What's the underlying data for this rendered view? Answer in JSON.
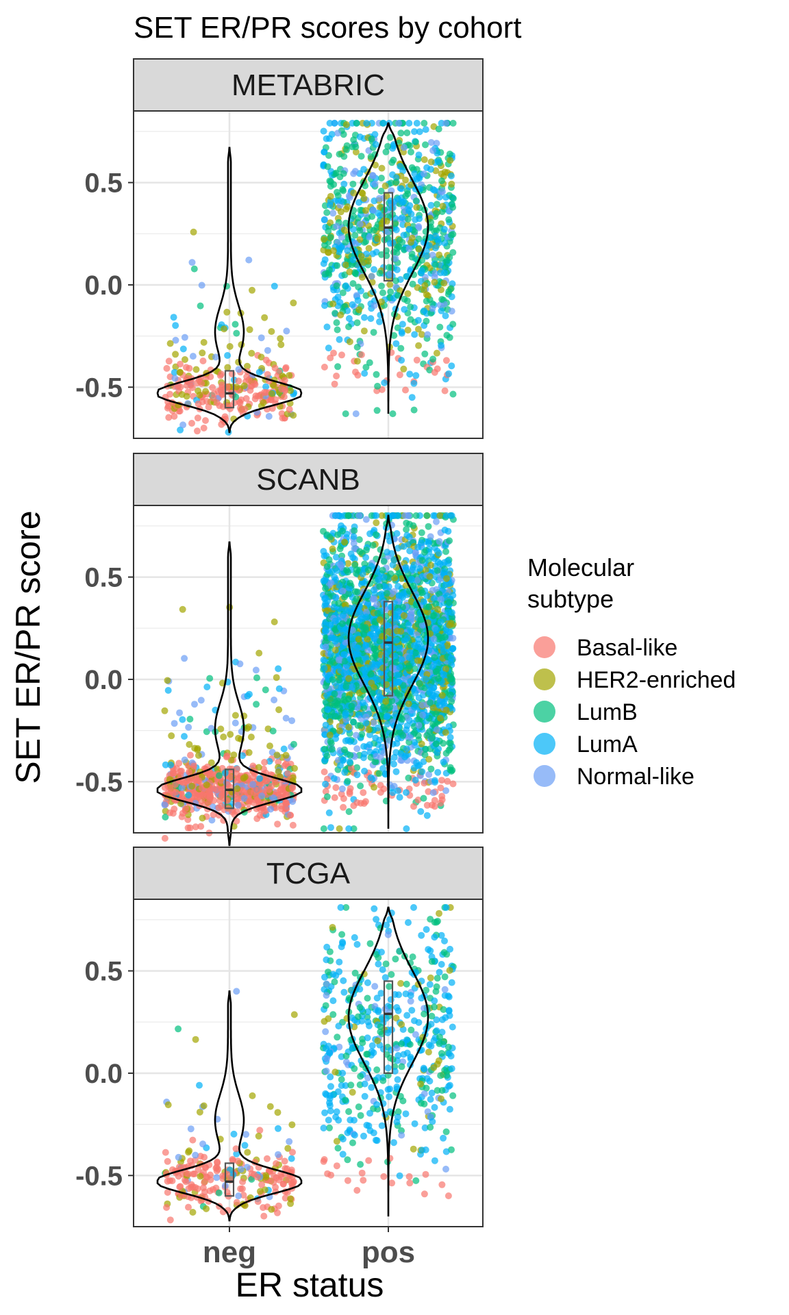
{
  "chart_data": {
    "type": "violin",
    "title": "SET ER/PR scores by cohort",
    "xlabel": "ER status",
    "ylabel": "SET ER/PR score",
    "categories": [
      "neg",
      "pos"
    ],
    "ylim": [
      -0.75,
      0.85
    ],
    "y_ticks": [
      "-0.5",
      "0.0",
      "0.5"
    ],
    "y_tick_values": [
      -0.5,
      0.0,
      0.5
    ],
    "grid": true,
    "legend": {
      "title_lines": [
        "Molecular",
        "subtype"
      ],
      "position": "right",
      "entries": [
        {
          "name": "Basal-like",
          "color": "#F8766D"
        },
        {
          "name": "HER2-enriched",
          "color": "#A3A500"
        },
        {
          "name": "LumB",
          "color": "#00BF7D"
        },
        {
          "name": "LumA",
          "color": "#00B0F6"
        },
        {
          "name": "Normal-like",
          "color": "#6B9EF5"
        }
      ]
    },
    "panels": [
      {
        "name": "METABRIC",
        "groups": {
          "neg": {
            "median": -0.53,
            "q1": -0.6,
            "q3": -0.42,
            "min": -0.72,
            "max": 0.67,
            "n_points": 320,
            "composition": [
              0.55,
              0.25,
              0.05,
              0.05,
              0.1
            ]
          },
          "pos": {
            "median": 0.28,
            "q1": 0.02,
            "q3": 0.45,
            "min": -0.63,
            "max": 0.79,
            "n_points": 900,
            "composition": [
              0.03,
              0.17,
              0.4,
              0.3,
              0.1
            ]
          }
        }
      },
      {
        "name": "SCANB",
        "groups": {
          "neg": {
            "median": -0.54,
            "q1": -0.63,
            "q3": -0.44,
            "min": -0.81,
            "max": 0.67,
            "n_points": 700,
            "composition": [
              0.58,
              0.2,
              0.04,
              0.06,
              0.12
            ]
          },
          "pos": {
            "median": 0.18,
            "q1": -0.08,
            "q3": 0.38,
            "min": -0.73,
            "max": 0.8,
            "n_points": 2600,
            "composition": [
              0.02,
              0.12,
              0.3,
              0.42,
              0.14
            ]
          }
        }
      },
      {
        "name": "TCGA",
        "groups": {
          "neg": {
            "median": -0.53,
            "q1": -0.6,
            "q3": -0.44,
            "min": -0.72,
            "max": 0.4,
            "n_points": 260,
            "composition": [
              0.62,
              0.2,
              0.05,
              0.05,
              0.08
            ]
          },
          "pos": {
            "median": 0.29,
            "q1": 0.0,
            "q3": 0.45,
            "min": -0.7,
            "max": 0.81,
            "n_points": 520,
            "composition": [
              0.04,
              0.08,
              0.28,
              0.52,
              0.08
            ]
          }
        }
      }
    ]
  }
}
